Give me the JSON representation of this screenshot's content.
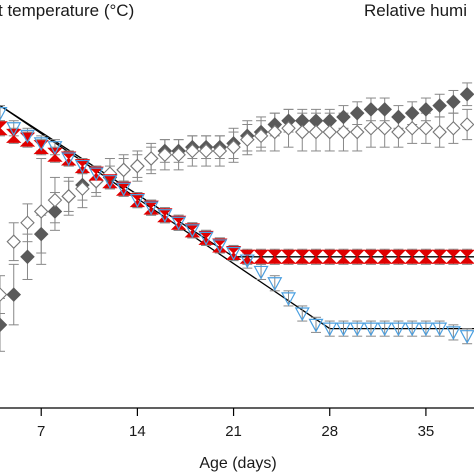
{
  "chart_data": {
    "type": "scatter",
    "title_left": "t temperature (°C)",
    "title_right": "Relative humi",
    "xlabel": "Age (days)",
    "ylabel": "",
    "x_ticks": [
      7,
      14,
      21,
      28,
      35
    ],
    "x_tick_labels": [
      "7",
      "14",
      "21",
      "28",
      "35"
    ],
    "xlim": [
      4,
      38.5
    ],
    "ylim": [
      0,
      100
    ],
    "grid": false,
    "colors": {
      "temp_open": "#4a9fe0",
      "temp_filled": "#e00000",
      "humidity_filled": "#5a5a5a",
      "humidity_open": "#777777",
      "error_bar": "#888888",
      "target_line": "#000000"
    },
    "series": [
      {
        "marker": "diamond-filled",
        "color": "#5a5a5a",
        "points": [
          {
            "x": 4,
            "y": 22,
            "e": 7
          },
          {
            "x": 5,
            "y": 30,
            "e": 8
          },
          {
            "x": 6,
            "y": 40,
            "e": 6
          },
          {
            "x": 7,
            "y": 46,
            "e": 5
          },
          {
            "x": 8,
            "y": 52,
            "e": 5
          },
          {
            "x": 9,
            "y": 56,
            "e": 4
          },
          {
            "x": 10,
            "y": 59,
            "e": 4
          },
          {
            "x": 11,
            "y": 60,
            "e": 3
          },
          {
            "x": 12,
            "y": 61,
            "e": 3
          },
          {
            "x": 13,
            "y": 63,
            "e": 3
          },
          {
            "x": 14,
            "y": 64,
            "e": 3
          },
          {
            "x": 15,
            "y": 66,
            "e": 3
          },
          {
            "x": 16,
            "y": 68,
            "e": 3
          },
          {
            "x": 17,
            "y": 68,
            "e": 3
          },
          {
            "x": 18,
            "y": 69,
            "e": 3
          },
          {
            "x": 19,
            "y": 69,
            "e": 3
          },
          {
            "x": 20,
            "y": 69,
            "e": 3
          },
          {
            "x": 21,
            "y": 70,
            "e": 4
          },
          {
            "x": 22,
            "y": 72,
            "e": 4
          },
          {
            "x": 23,
            "y": 73,
            "e": 4
          },
          {
            "x": 24,
            "y": 75,
            "e": 3
          },
          {
            "x": 25,
            "y": 76,
            "e": 3
          },
          {
            "x": 26,
            "y": 76,
            "e": 3
          },
          {
            "x": 27,
            "y": 76,
            "e": 3
          },
          {
            "x": 28,
            "y": 76,
            "e": 3
          },
          {
            "x": 29,
            "y": 77,
            "e": 3
          },
          {
            "x": 30,
            "y": 78,
            "e": 3
          },
          {
            "x": 31,
            "y": 79,
            "e": 3
          },
          {
            "x": 32,
            "y": 79,
            "e": 3
          },
          {
            "x": 33,
            "y": 77,
            "e": 3
          },
          {
            "x": 34,
            "y": 78,
            "e": 3
          },
          {
            "x": 35,
            "y": 79,
            "e": 3
          },
          {
            "x": 36,
            "y": 80,
            "e": 3
          },
          {
            "x": 37,
            "y": 81,
            "e": 3
          },
          {
            "x": 38,
            "y": 83,
            "e": 3
          }
        ]
      },
      {
        "marker": "diamond-open",
        "color": "#777777",
        "points": [
          {
            "x": 4,
            "y": 30,
            "e": 5
          },
          {
            "x": 5,
            "y": 44,
            "e": 5
          },
          {
            "x": 6,
            "y": 49,
            "e": 5
          },
          {
            "x": 7,
            "y": 52,
            "e": 14
          },
          {
            "x": 8,
            "y": 55,
            "e": 6
          },
          {
            "x": 9,
            "y": 56,
            "e": 5
          },
          {
            "x": 10,
            "y": 58,
            "e": 5
          },
          {
            "x": 11,
            "y": 60,
            "e": 4
          },
          {
            "x": 12,
            "y": 62,
            "e": 4
          },
          {
            "x": 13,
            "y": 63,
            "e": 4
          },
          {
            "x": 14,
            "y": 64,
            "e": 4
          },
          {
            "x": 15,
            "y": 66,
            "e": 4
          },
          {
            "x": 16,
            "y": 67,
            "e": 4
          },
          {
            "x": 17,
            "y": 67,
            "e": 4
          },
          {
            "x": 18,
            "y": 68,
            "e": 4
          },
          {
            "x": 19,
            "y": 68,
            "e": 4
          },
          {
            "x": 20,
            "y": 68,
            "e": 4
          },
          {
            "x": 21,
            "y": 69,
            "e": 4
          },
          {
            "x": 22,
            "y": 71,
            "e": 4
          },
          {
            "x": 23,
            "y": 72,
            "e": 4
          },
          {
            "x": 24,
            "y": 73,
            "e": 5
          },
          {
            "x": 25,
            "y": 74,
            "e": 5
          },
          {
            "x": 26,
            "y": 73,
            "e": 5
          },
          {
            "x": 27,
            "y": 73,
            "e": 5
          },
          {
            "x": 28,
            "y": 73,
            "e": 5
          },
          {
            "x": 29,
            "y": 73,
            "e": 5
          },
          {
            "x": 30,
            "y": 73,
            "e": 5
          },
          {
            "x": 31,
            "y": 74,
            "e": 5
          },
          {
            "x": 32,
            "y": 74,
            "e": 5
          },
          {
            "x": 33,
            "y": 73,
            "e": 4
          },
          {
            "x": 34,
            "y": 74,
            "e": 4
          },
          {
            "x": 35,
            "y": 74,
            "e": 4
          },
          {
            "x": 36,
            "y": 73,
            "e": 4
          },
          {
            "x": 37,
            "y": 74,
            "e": 4
          },
          {
            "x": 38,
            "y": 75,
            "e": 4
          }
        ]
      },
      {
        "marker": "hourglass-filled",
        "color": "#e00000",
        "points": [
          {
            "x": 4,
            "y": 74,
            "e": 2
          },
          {
            "x": 5,
            "y": 72,
            "e": 2
          },
          {
            "x": 6,
            "y": 71,
            "e": 2
          },
          {
            "x": 7,
            "y": 69,
            "e": 2
          },
          {
            "x": 8,
            "y": 67,
            "e": 2
          },
          {
            "x": 9,
            "y": 66,
            "e": 2
          },
          {
            "x": 10,
            "y": 64,
            "e": 2
          },
          {
            "x": 11,
            "y": 62,
            "e": 2
          },
          {
            "x": 12,
            "y": 60,
            "e": 2
          },
          {
            "x": 13,
            "y": 58,
            "e": 2
          },
          {
            "x": 14,
            "y": 55,
            "e": 2
          },
          {
            "x": 15,
            "y": 53,
            "e": 2
          },
          {
            "x": 16,
            "y": 51,
            "e": 2
          },
          {
            "x": 17,
            "y": 49,
            "e": 2
          },
          {
            "x": 18,
            "y": 47,
            "e": 2
          },
          {
            "x": 19,
            "y": 45,
            "e": 2
          },
          {
            "x": 20,
            "y": 43,
            "e": 2
          },
          {
            "x": 21,
            "y": 41,
            "e": 2
          },
          {
            "x": 22,
            "y": 40,
            "e": 2
          },
          {
            "x": 23,
            "y": 40,
            "e": 2
          },
          {
            "x": 24,
            "y": 40,
            "e": 2
          },
          {
            "x": 25,
            "y": 40,
            "e": 2
          },
          {
            "x": 26,
            "y": 40,
            "e": 2
          },
          {
            "x": 27,
            "y": 40,
            "e": 2
          },
          {
            "x": 28,
            "y": 40,
            "e": 2
          },
          {
            "x": 29,
            "y": 40,
            "e": 2
          },
          {
            "x": 30,
            "y": 40,
            "e": 2
          },
          {
            "x": 31,
            "y": 40,
            "e": 2
          },
          {
            "x": 32,
            "y": 40,
            "e": 2
          },
          {
            "x": 33,
            "y": 40,
            "e": 2
          },
          {
            "x": 34,
            "y": 40,
            "e": 2
          },
          {
            "x": 35,
            "y": 40,
            "e": 2
          },
          {
            "x": 36,
            "y": 40,
            "e": 2
          },
          {
            "x": 37,
            "y": 40,
            "e": 2
          },
          {
            "x": 38,
            "y": 40,
            "e": 2
          }
        ]
      },
      {
        "marker": "triangle-open",
        "color": "#4a9fe0",
        "points": [
          {
            "x": 4,
            "y": 78,
            "e": 2
          },
          {
            "x": 5,
            "y": 74,
            "e": 2
          },
          {
            "x": 6,
            "y": 72,
            "e": 2
          },
          {
            "x": 7,
            "y": 70,
            "e": 2
          },
          {
            "x": 8,
            "y": 69,
            "e": 2
          },
          {
            "x": 9,
            "y": 66,
            "e": 2
          },
          {
            "x": 10,
            "y": 64,
            "e": 2
          },
          {
            "x": 11,
            "y": 62,
            "e": 2
          },
          {
            "x": 12,
            "y": 60,
            "e": 2
          },
          {
            "x": 13,
            "y": 58,
            "e": 2
          },
          {
            "x": 14,
            "y": 55,
            "e": 2
          },
          {
            "x": 15,
            "y": 53,
            "e": 2
          },
          {
            "x": 16,
            "y": 51,
            "e": 2
          },
          {
            "x": 17,
            "y": 49,
            "e": 2
          },
          {
            "x": 18,
            "y": 47,
            "e": 2
          },
          {
            "x": 19,
            "y": 45,
            "e": 2
          },
          {
            "x": 20,
            "y": 43,
            "e": 2
          },
          {
            "x": 21,
            "y": 41,
            "e": 2
          },
          {
            "x": 22,
            "y": 39,
            "e": 2
          },
          {
            "x": 23,
            "y": 36,
            "e": 2
          },
          {
            "x": 24,
            "y": 33,
            "e": 2
          },
          {
            "x": 25,
            "y": 29,
            "e": 2
          },
          {
            "x": 26,
            "y": 25,
            "e": 2
          },
          {
            "x": 27,
            "y": 22,
            "e": 2
          },
          {
            "x": 28,
            "y": 21,
            "e": 2
          },
          {
            "x": 29,
            "y": 21,
            "e": 2
          },
          {
            "x": 30,
            "y": 21,
            "e": 2
          },
          {
            "x": 31,
            "y": 21,
            "e": 2
          },
          {
            "x": 32,
            "y": 21,
            "e": 2
          },
          {
            "x": 33,
            "y": 21,
            "e": 2
          },
          {
            "x": 34,
            "y": 21,
            "e": 2
          },
          {
            "x": 35,
            "y": 21,
            "e": 2
          },
          {
            "x": 36,
            "y": 21,
            "e": 2
          },
          {
            "x": 37,
            "y": 20,
            "e": 2
          },
          {
            "x": 38,
            "y": 19,
            "e": 2
          }
        ]
      }
    ],
    "reference_lines": [
      {
        "color": "#000000",
        "points": [
          [
            4,
            80
          ],
          [
            21,
            40
          ],
          [
            38.5,
            40
          ]
        ]
      },
      {
        "color": "#000000",
        "points": [
          [
            4,
            80
          ],
          [
            28,
            21
          ],
          [
            38.5,
            21
          ]
        ]
      }
    ]
  }
}
